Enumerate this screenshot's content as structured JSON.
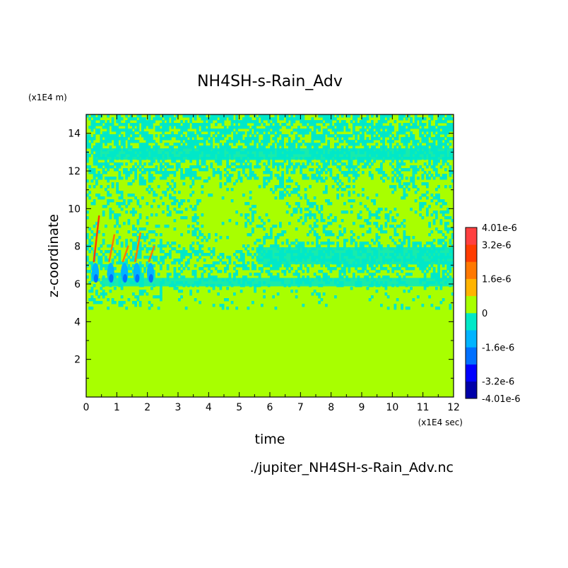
{
  "chart_data": {
    "type": "heatmap",
    "title": "NH4SH-s-Rain_Adv",
    "xlabel": "time",
    "ylabel": "z-coordinate",
    "x_multiplier": "(x1E4 sec)",
    "y_multiplier": "(x1E4 m)",
    "xlim": [
      0,
      12
    ],
    "ylim": [
      0,
      15
    ],
    "x_ticks": [
      "0",
      "1",
      "2",
      "3",
      "4",
      "5",
      "6",
      "7",
      "8",
      "9",
      "10",
      "11",
      "12"
    ],
    "y_ticks": [
      "2",
      "4",
      "6",
      "8",
      "10",
      "12",
      "14"
    ],
    "colorbar": {
      "min": -4.01e-06,
      "max": 4.01e-06,
      "labels": [
        "4.01e-6",
        "3.2e-6",
        "1.6e-6",
        "0",
        "-1.6e-6",
        "-3.2e-6",
        "-4.01e-6"
      ],
      "colors": [
        "#0000a8",
        "#0000ff",
        "#0070ff",
        "#00b4ff",
        "#00e8c8",
        "#a8ff00",
        "#ffb400",
        "#ff7800",
        "#ff3c00",
        "#ff4040"
      ]
    },
    "field_description": "Mostly zero (green) field; bands of small negative values (cyan) between z=5 and 15 (x1E4 m), concentrated near z=7.5 and above z=12; stronger negative and positive streaks near z=6-9 for time 0.2-2.2 (x1E4 sec)."
  },
  "footer": {
    "filename": "./jupiter_NH4SH-s-Rain_Adv.nc"
  }
}
